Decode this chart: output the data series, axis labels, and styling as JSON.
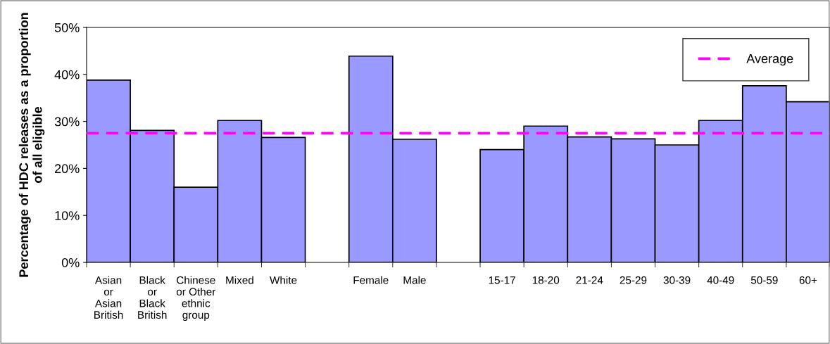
{
  "chart_data": {
    "type": "bar",
    "ylabel": "Percentage of HDC releases as a proportion\nof all eligible",
    "categories": [
      "Asian\nor\nAsian\nBritish",
      "Black\nor\nBlack\nBritish",
      "Chinese\nor Other\nethnic\ngroup",
      "Mixed",
      "White",
      null,
      "Female",
      "Male",
      null,
      "15-17",
      "18-20",
      "21-24",
      "25-29",
      "30-39",
      "40-49",
      "50-59",
      "60+"
    ],
    "values": [
      38.8,
      28.1,
      16.0,
      30.2,
      26.6,
      null,
      43.9,
      26.2,
      null,
      24.0,
      29.0,
      26.7,
      26.3,
      25.0,
      30.2,
      37.6,
      34.2
    ],
    "color": "#9999ff",
    "ylim": [
      0,
      50
    ],
    "yticks": [
      {
        "value": 0,
        "label": "0%"
      },
      {
        "value": 10,
        "label": "10%"
      },
      {
        "value": 20,
        "label": "20%"
      },
      {
        "value": 30,
        "label": "30%"
      },
      {
        "value": 40,
        "label": "40%"
      },
      {
        "value": 50,
        "label": "50%"
      }
    ],
    "ref_lines": [
      {
        "axis": "y",
        "value": 27.5,
        "label": "Average",
        "color": "#ff00ff",
        "line_style": "dashed"
      }
    ],
    "legend": "top right",
    "grid": false
  }
}
